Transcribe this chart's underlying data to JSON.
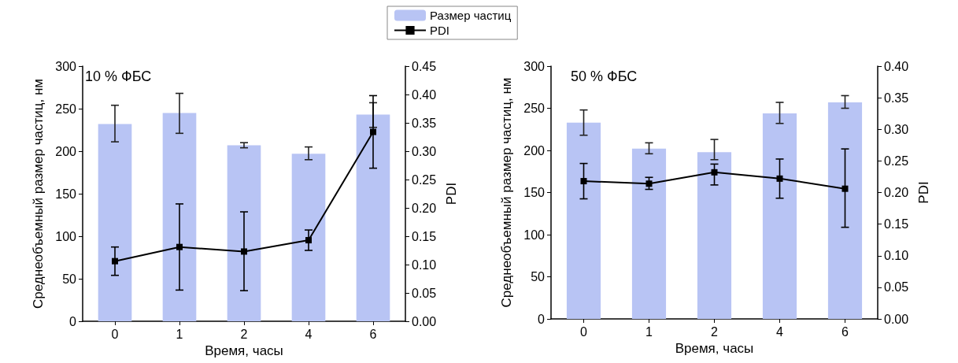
{
  "chart_data": [
    {
      "type": "bar",
      "annotations": [
        "10 % ФБС"
      ],
      "xlabel": "Время, часы",
      "ylabel": "Среднеобъемный размер частиц, нм",
      "y2label": "PDI",
      "categories": [
        "0",
        "1",
        "2",
        "4",
        "6"
      ],
      "legend": "top right",
      "marker": "square",
      "line_style": "solid",
      "grid": false,
      "series": [
        {
          "name": "Размер частиц",
          "color": "#b8c4f4",
          "values": [
            232,
            245,
            207,
            197,
            243
          ],
          "errors": [
            [
              211,
              254
            ],
            [
              221,
              268
            ],
            [
              204,
              210
            ],
            [
              190,
              205
            ],
            [
              228,
              257
            ]
          ]
        },
        {
          "name": "PDI",
          "type": "line",
          "axis": "y2",
          "color": "#000000",
          "values": [
            0.106,
            0.131,
            0.123,
            0.143,
            0.334
          ],
          "errors": [
            [
              0.081,
              0.131
            ],
            [
              0.055,
              0.207
            ],
            [
              0.054,
              0.193
            ],
            [
              0.125,
              0.161
            ],
            [
              0.27,
              0.398
            ]
          ]
        }
      ],
      "ylim": [
        0,
        300
      ],
      "yticks": [
        0,
        50,
        100,
        150,
        200,
        250,
        300
      ],
      "y2lim": [
        0,
        0.45
      ],
      "y2ticks": [
        {
          "value": 0,
          "label": "0.00"
        },
        {
          "value": 0.05,
          "label": "0.05"
        },
        {
          "value": 0.1,
          "label": "0.10"
        },
        {
          "value": 0.15,
          "label": "0.15"
        },
        {
          "value": 0.2,
          "label": "0.20"
        },
        {
          "value": 0.25,
          "label": "0.25"
        },
        {
          "value": 0.3,
          "label": "0.30"
        },
        {
          "value": 0.35,
          "label": "0.35"
        },
        {
          "value": 0.4,
          "label": "0.40"
        },
        {
          "value": 0.45,
          "label": "0.45"
        }
      ]
    },
    {
      "type": "bar",
      "annotations": [
        "50 % ФБС"
      ],
      "xlabel": "Время, часы",
      "ylabel": "Среднеобъемный размер частиц, нм",
      "y2label": "PDI",
      "categories": [
        "0",
        "1",
        "2",
        "4",
        "6"
      ],
      "marker": "square",
      "line_style": "solid",
      "grid": false,
      "series": [
        {
          "color": "#b8c4f4",
          "values": [
            233,
            202,
            198,
            244,
            257
          ],
          "errors": [
            [
              218,
              248
            ],
            [
              196,
              209
            ],
            [
              189,
              213
            ],
            [
              232,
              257
            ],
            [
              250,
              265
            ]
          ]
        },
        {
          "type": "line",
          "axis": "y2",
          "color": "#000000",
          "values": [
            0.218,
            0.214,
            0.232,
            0.222,
            0.206
          ],
          "errors": [
            [
              0.19,
              0.246
            ],
            [
              0.205,
              0.224
            ],
            [
              0.212,
              0.245
            ],
            [
              0.191,
              0.253
            ],
            [
              0.145,
              0.269
            ]
          ]
        }
      ],
      "ylim": [
        0,
        300
      ],
      "yticks": [
        0,
        50,
        100,
        150,
        200,
        250,
        300
      ],
      "y2lim": [
        0,
        0.4
      ],
      "y2ticks": [
        {
          "value": 0,
          "label": "0.00"
        },
        {
          "value": 0.05,
          "label": "0.05"
        },
        {
          "value": 0.1,
          "label": "0.10"
        },
        {
          "value": 0.15,
          "label": "0.15"
        },
        {
          "value": 0.2,
          "label": "0.20"
        },
        {
          "value": 0.25,
          "label": "0.25"
        },
        {
          "value": 0.3,
          "label": "0.30"
        },
        {
          "value": 0.35,
          "label": "0.35"
        },
        {
          "value": 0.4,
          "label": "0.40"
        }
      ]
    }
  ]
}
